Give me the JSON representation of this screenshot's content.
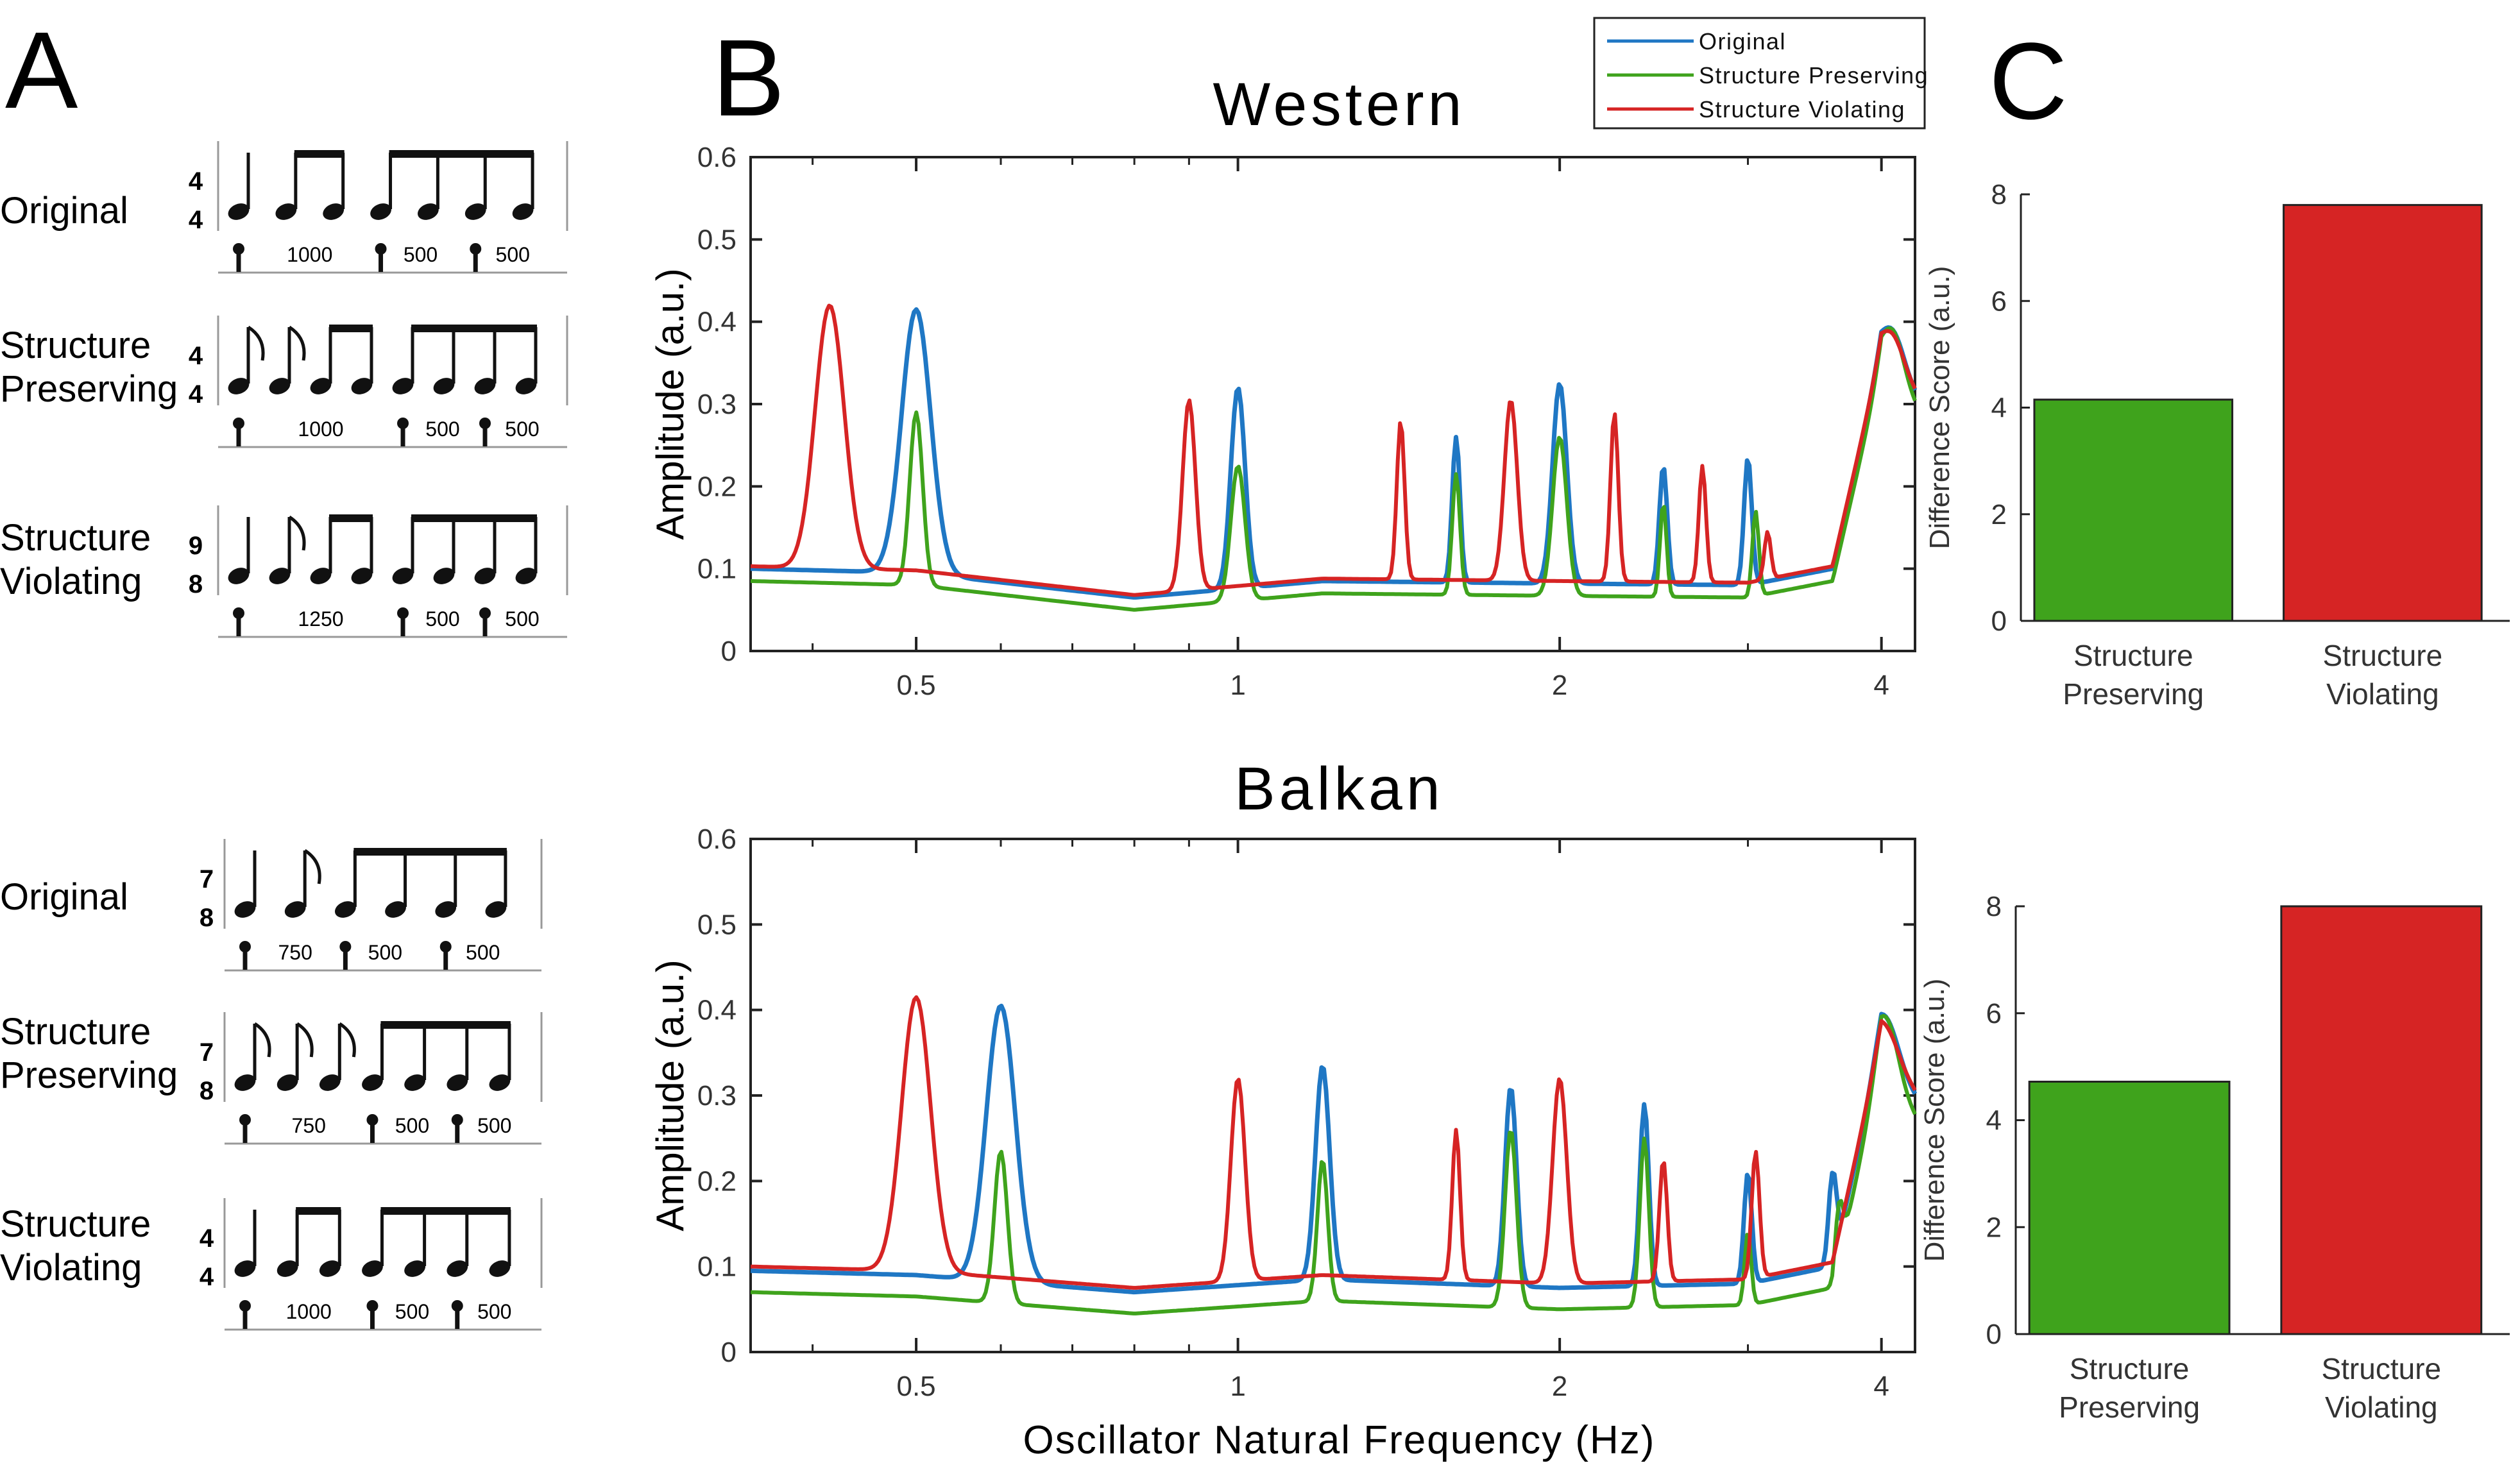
{
  "panel_labels": {
    "a": "A",
    "b": "B",
    "c": "C"
  },
  "rhythms": [
    {
      "label_lines": [
        "Original"
      ],
      "time_sig": [
        "4",
        "4"
      ],
      "notes": [
        "q",
        "e",
        "e",
        "e",
        "e",
        "e",
        "e"
      ],
      "beams": [
        [
          1,
          2
        ],
        [
          3,
          6
        ]
      ],
      "intervals": [
        "1000",
        "500",
        "500"
      ]
    },
    {
      "label_lines": [
        "Structure",
        "Preserving"
      ],
      "time_sig": [
        "4",
        "4"
      ],
      "notes": [
        "ef",
        "ef",
        "e",
        "e",
        "e",
        "e",
        "e",
        "e"
      ],
      "beams": [
        [
          2,
          3
        ],
        [
          4,
          7
        ]
      ],
      "intervals": [
        "1000",
        "500",
        "500"
      ]
    },
    {
      "label_lines": [
        "Structure",
        "Violating"
      ],
      "time_sig": [
        "9",
        "8"
      ],
      "notes": [
        "q",
        "ef",
        "e",
        "e",
        "e",
        "e",
        "e",
        "e"
      ],
      "beams": [
        [
          2,
          3
        ],
        [
          4,
          7
        ]
      ],
      "intervals": [
        "1250",
        "500",
        "500"
      ]
    },
    {
      "label_lines": [
        "Original"
      ],
      "time_sig": [
        "7",
        "8"
      ],
      "notes": [
        "q",
        "ef",
        "e",
        "e",
        "e",
        "e"
      ],
      "beams": [
        [
          2,
          5
        ]
      ],
      "intervals": [
        "750",
        "500",
        "500"
      ]
    },
    {
      "label_lines": [
        "Structure",
        "Preserving"
      ],
      "time_sig": [
        "7",
        "8"
      ],
      "notes": [
        "ef",
        "ef",
        "ef",
        "e",
        "e",
        "e",
        "e"
      ],
      "beams": [
        [
          3,
          6
        ]
      ],
      "intervals": [
        "750",
        "500",
        "500"
      ]
    },
    {
      "label_lines": [
        "Structure",
        "Violating"
      ],
      "time_sig": [
        "4",
        "4"
      ],
      "notes": [
        "q",
        "e",
        "e",
        "e",
        "e",
        "e",
        "e"
      ],
      "beams": [
        [
          1,
          2
        ],
        [
          3,
          6
        ]
      ],
      "intervals": [
        "1000",
        "500",
        "500"
      ]
    }
  ],
  "colors": {
    "original": "#1f77c4",
    "preserving": "#3fa31c",
    "violating": "#d62424"
  },
  "chart_data": [
    {
      "type": "line",
      "title": "Western",
      "xlabel": "",
      "ylabel": "Amplitude (a.u.)",
      "x_scale": "log2",
      "xlim": [
        0.35,
        4.3
      ],
      "ylim": [
        0,
        0.6
      ],
      "xticks": [
        0.5,
        1,
        2,
        4
      ],
      "xtick_labels": [
        "0.5",
        "1",
        "2",
        "4"
      ],
      "yticks": [
        0,
        0.1,
        0.2,
        0.3,
        0.4,
        0.5,
        0.6
      ],
      "ytick_labels": [
        "0",
        "0.1",
        "0.2",
        "0.3",
        "0.4",
        "0.5",
        "0.6"
      ],
      "legend": {
        "position": "top-right",
        "entries": [
          "Original",
          "Structure Preserving",
          "Structure Violating"
        ]
      },
      "baseline": [
        [
          0.35,
          0.1
        ],
        [
          0.5,
          0.095
        ],
        [
          0.8,
          0.065
        ],
        [
          1.2,
          0.085
        ],
        [
          2.0,
          0.082
        ],
        [
          3.0,
          0.08
        ],
        [
          3.6,
          0.1
        ],
        [
          4.0,
          0.36
        ],
        [
          4.3,
          0.31
        ]
      ],
      "series": [
        {
          "name": "Original",
          "color": "#1f77c4",
          "width": 7,
          "peaks": [
            [
              0.5,
              0.415,
              0.045
            ],
            [
              1.0,
              0.32,
              0.022
            ],
            [
              1.6,
              0.26,
              0.012
            ],
            [
              2.0,
              0.325,
              0.022
            ],
            [
              2.5,
              0.225,
              0.012
            ],
            [
              3.0,
              0.235,
              0.012
            ],
            [
              3.75,
              0.175,
              0.012
            ],
            [
              4.1,
              0.39,
              0.035
            ]
          ]
        },
        {
          "name": "Structure Preserving",
          "color": "#3fa31c",
          "width": 6,
          "offset": -0.015,
          "peaks": [
            [
              0.5,
              0.29,
              0.02
            ],
            [
              1.0,
              0.225,
              0.022
            ],
            [
              1.6,
              0.215,
              0.012
            ],
            [
              2.0,
              0.26,
              0.022
            ],
            [
              2.5,
              0.18,
              0.01
            ],
            [
              3.05,
              0.17,
              0.01
            ],
            [
              4.1,
              0.39,
              0.035
            ]
          ]
        },
        {
          "name": "Structure Violating",
          "color": "#d62424",
          "width": 6,
          "offset": 0.003,
          "peaks": [
            [
              0.415,
              0.42,
              0.045
            ],
            [
              0.9,
              0.305,
              0.02
            ],
            [
              1.42,
              0.28,
              0.012
            ],
            [
              1.8,
              0.305,
              0.02
            ],
            [
              2.25,
              0.29,
              0.012
            ],
            [
              2.72,
              0.225,
              0.011
            ],
            [
              3.13,
              0.145,
              0.01
            ],
            [
              4.1,
              0.385,
              0.035
            ]
          ]
        }
      ]
    },
    {
      "type": "line",
      "title": "Balkan",
      "xlabel": "Oscillator Natural Frequency (Hz)",
      "ylabel": "Amplitude (a.u.)",
      "x_scale": "log2",
      "xlim": [
        0.35,
        4.3
      ],
      "ylim": [
        0,
        0.6
      ],
      "xticks": [
        0.5,
        1,
        2,
        4
      ],
      "xtick_labels": [
        "0.5",
        "1",
        "2",
        "4"
      ],
      "yticks": [
        0,
        0.1,
        0.2,
        0.3,
        0.4,
        0.5,
        0.6
      ],
      "ytick_labels": [
        "0",
        "0.1",
        "0.2",
        "0.3",
        "0.4",
        "0.5",
        "0.6"
      ],
      "baseline": [
        [
          0.35,
          0.095
        ],
        [
          0.5,
          0.09
        ],
        [
          0.8,
          0.07
        ],
        [
          1.2,
          0.085
        ],
        [
          2.0,
          0.075
        ],
        [
          3.0,
          0.08
        ],
        [
          3.6,
          0.1
        ],
        [
          4.0,
          0.36
        ],
        [
          4.3,
          0.3
        ]
      ],
      "series": [
        {
          "name": "Original",
          "color": "#1f77c4",
          "width": 7,
          "peaks": [
            [
              0.6,
              0.405,
              0.045
            ],
            [
              1.2,
              0.335,
              0.022
            ],
            [
              1.8,
              0.31,
              0.018
            ],
            [
              2.4,
              0.29,
              0.014
            ],
            [
              3.0,
              0.21,
              0.012
            ],
            [
              3.6,
              0.21,
              0.012
            ],
            [
              4.05,
              0.39,
              0.035
            ]
          ]
        },
        {
          "name": "Structure Preserving",
          "color": "#3fa31c",
          "width": 6,
          "offset": -0.025,
          "peaks": [
            [
              0.6,
              0.235,
              0.02
            ],
            [
              1.2,
              0.225,
              0.016
            ],
            [
              1.8,
              0.26,
              0.018
            ],
            [
              2.4,
              0.25,
              0.014
            ],
            [
              3.0,
              0.14,
              0.01
            ],
            [
              3.65,
              0.175,
              0.012
            ],
            [
              4.05,
              0.39,
              0.035
            ]
          ]
        },
        {
          "name": "Structure Violating",
          "color": "#d62424",
          "width": 6,
          "offset": 0.005,
          "peaks": [
            [
              0.5,
              0.415,
              0.045
            ],
            [
              1.0,
              0.32,
              0.022
            ],
            [
              1.6,
              0.26,
              0.012
            ],
            [
              2.0,
              0.32,
              0.022
            ],
            [
              2.5,
              0.225,
              0.012
            ],
            [
              3.05,
              0.235,
              0.012
            ],
            [
              4.05,
              0.38,
              0.035
            ]
          ]
        }
      ]
    },
    {
      "type": "bar",
      "title": "",
      "xlabel": "",
      "ylabel": "Difference Score (a.u.)",
      "ylim": [
        0,
        8
      ],
      "yticks": [
        0,
        2,
        4,
        6,
        8
      ],
      "ytick_labels": [
        "0",
        "2",
        "4",
        "6",
        "8"
      ],
      "categories": [
        [
          "Structure",
          "Preserving"
        ],
        [
          "Structure",
          "Violating"
        ]
      ],
      "values": [
        4.15,
        7.8
      ],
      "bar_colors": [
        "#3fa31c",
        "#d62424"
      ]
    },
    {
      "type": "bar",
      "title": "",
      "xlabel": "",
      "ylabel": "Difference Score (a.u.)",
      "ylim": [
        0,
        8
      ],
      "yticks": [
        0,
        2,
        4,
        6,
        8
      ],
      "ytick_labels": [
        "0",
        "2",
        "4",
        "6",
        "8"
      ],
      "categories": [
        [
          "Structure",
          "Preserving"
        ],
        [
          "Structure",
          "Violating"
        ]
      ],
      "values": [
        4.72,
        8.0
      ],
      "bar_colors": [
        "#3fa31c",
        "#d62424"
      ]
    }
  ]
}
